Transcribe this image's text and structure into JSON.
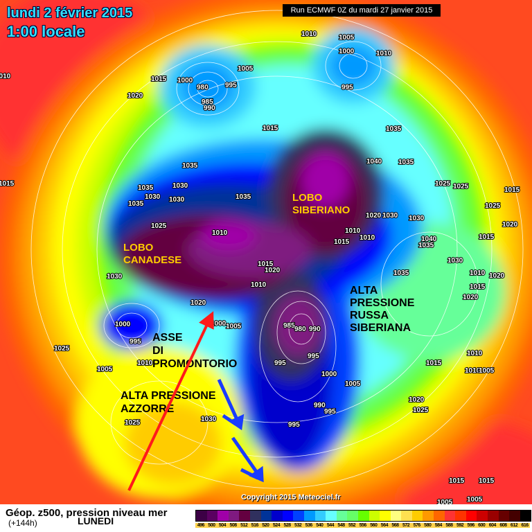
{
  "header": {
    "date": "lundi 2 février 2015",
    "time": "1:00 locale",
    "run": "Run ECMWF 0Z du mardi 27 janvier 2015"
  },
  "copyright": "Copyright 2015 Meteociel.fr",
  "footer": {
    "title": "Géop. z500, pression niveau mer",
    "lead": "(+144h)",
    "day": "LUNEDI"
  },
  "legend": {
    "values": [
      "496",
      "500",
      "504",
      "508",
      "512",
      "516",
      "520",
      "524",
      "528",
      "532",
      "536",
      "540",
      "544",
      "548",
      "552",
      "556",
      "560",
      "564",
      "568",
      "572",
      "576",
      "580",
      "584",
      "588",
      "592",
      "596",
      "600",
      "604",
      "608",
      "612",
      "616"
    ],
    "colors": [
      "#3c0045",
      "#5a0060",
      "#a000a8",
      "#7f1a80",
      "#640040",
      "#30305e",
      "#003399",
      "#0000cc",
      "#0000ff",
      "#0040ff",
      "#0099ff",
      "#33ccff",
      "#66ffff",
      "#66ff99",
      "#66ff66",
      "#66ff00",
      "#ccff00",
      "#ffff00",
      "#ffff80",
      "#ffe050",
      "#ffcc00",
      "#ff9900",
      "#ff6600",
      "#ff3333",
      "#ff3300",
      "#ff0000",
      "#cc0000",
      "#990000",
      "#660000",
      "#440000",
      "#000000"
    ]
  },
  "annotations": {
    "lobo_canadese": [
      "LOBO",
      "CANADESE"
    ],
    "lobo_siberiano": [
      "LOBO",
      "SIBERIANO"
    ],
    "alta_russa": [
      "ALTA",
      "PRESSIONE",
      "RUSSA",
      "SIBERIANA"
    ],
    "asse": [
      "ASSE",
      "DI",
      "PROMONTORIO"
    ],
    "alta_azzorre": [
      "ALTA PRESSIONE",
      "AZZORRE"
    ]
  },
  "isobar_labels": [
    "1010",
    "1005",
    "1000",
    "1010",
    "995",
    "1015",
    "1000",
    "980",
    "995",
    "1005",
    "985",
    "990",
    "1020",
    "1010",
    "1015",
    "1035",
    "1040",
    "1035",
    "1035",
    "1035",
    "1030",
    "1030",
    "1035",
    "1030",
    "1035",
    "1025",
    "1025",
    "1015",
    "1025",
    "1015",
    "1025",
    "1010",
    "1020",
    "1030",
    "1030",
    "1010",
    "1010",
    "1015",
    "1040",
    "1035",
    "1015",
    "1020",
    "1030",
    "1015",
    "1020",
    "1010",
    "1035",
    "1030",
    "1010",
    "1020",
    "1015",
    "1020",
    "1020",
    "1000",
    "995",
    "1000",
    "1005",
    "985",
    "980",
    "990",
    "1005",
    "1010",
    "995",
    "995",
    "1000",
    "1005",
    "1015",
    "1010",
    "1010",
    "1005",
    "1025",
    "1020",
    "1025",
    "990",
    "995",
    "995",
    "1030",
    "1025",
    "1015",
    "1015",
    "1005",
    "1005"
  ],
  "arrows": {
    "red": "#ff1a1a",
    "blue": "#1a3cff"
  }
}
